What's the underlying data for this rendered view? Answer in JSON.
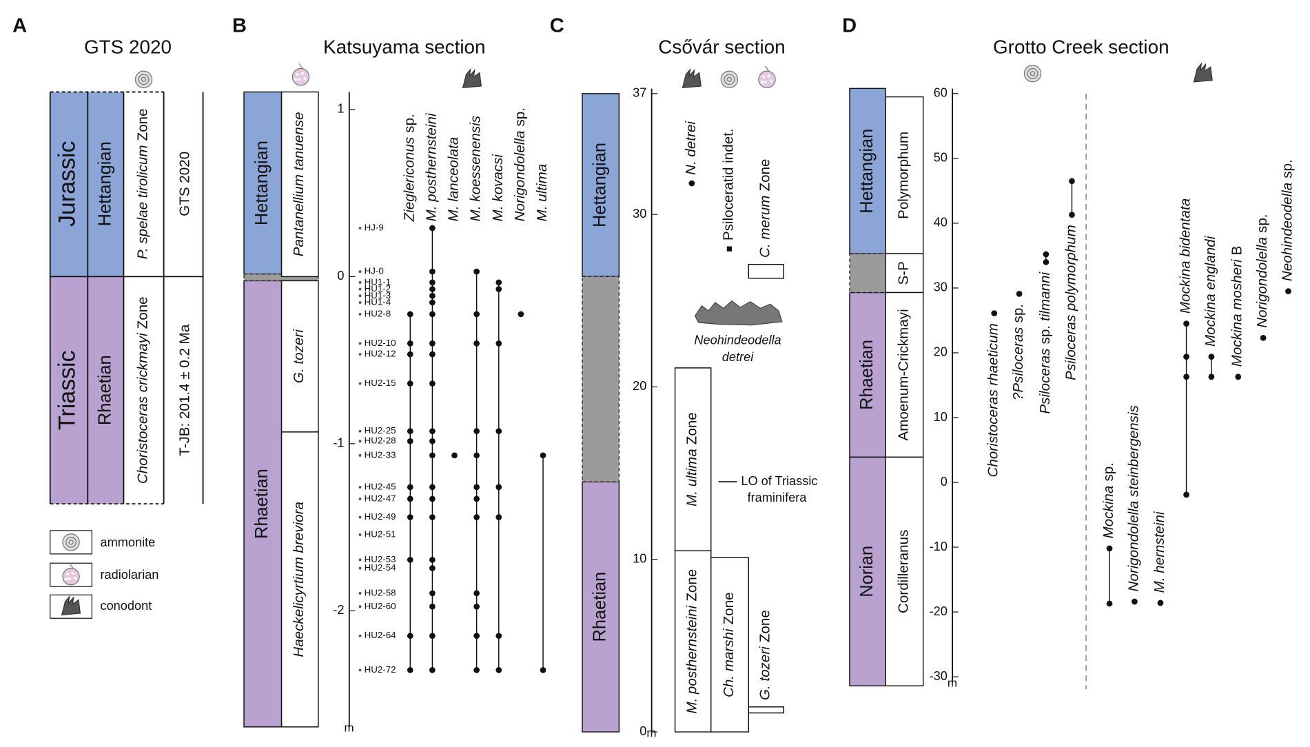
{
  "A": {
    "label": "A",
    "title": "GTS 2020",
    "systems": [
      "Jurassic",
      "Triassic"
    ],
    "stages": [
      "Hettangian",
      "Rhaetian"
    ],
    "zones": [
      {
        "name": [
          "P. spelae tirolicum",
          "Zone"
        ],
        "italic": [
          true,
          false
        ]
      },
      {
        "name": [
          "Choristoceras crickmayi",
          "Zone"
        ],
        "italic": [
          true,
          false
        ]
      }
    ],
    "scale": "GTS 2020",
    "boundary": "T-JB:  201.4 ± 0.2 Ma",
    "legend": [
      "ammonite",
      "radiolarian",
      "conodont"
    ]
  },
  "B": {
    "label": "B",
    "title": "Katsuyama section",
    "ylim": [
      -2.695,
      1.105
    ],
    "yticks": [
      1,
      0,
      -1,
      -2
    ],
    "unit": "m",
    "stages": [
      {
        "name": "Hettangian",
        "range": [
          0.015,
          1.105
        ],
        "color": "#8aa5d6"
      },
      {
        "name": "Rhaetian",
        "range": [
          -2.695,
          -0.025
        ],
        "color": "#b9a2cf"
      }
    ],
    "gray_band": [
      -0.025,
      0.015
    ],
    "zones": [
      {
        "name": [
          "Pantanellium tanuense"
        ],
        "italic": [
          true
        ],
        "range": [
          0,
          1.105
        ]
      },
      {
        "name": [
          "G. tozeri"
        ],
        "italic": [
          true
        ],
        "range": [
          -0.93,
          -0.025
        ]
      },
      {
        "name": [
          "Haeckelicyrtium breviora"
        ],
        "italic": [
          true
        ],
        "range": [
          -2.695,
          -0.93
        ]
      }
    ],
    "samples": [
      {
        "name": "HJ-9",
        "height": 0.29
      },
      {
        "name": "HJ-0",
        "height": 0.03
      },
      {
        "name": "HU1-1",
        "height": -0.035
      },
      {
        "name": "HU1-2",
        "height": -0.075
      },
      {
        "name": "HU1-3",
        "height": -0.115
      },
      {
        "name": "HU1-4",
        "height": -0.155
      },
      {
        "name": "HU2-8",
        "height": -0.225
      },
      {
        "name": "HU2-10",
        "height": -0.4
      },
      {
        "name": "HU2-12",
        "height": -0.465
      },
      {
        "name": "HU2-15",
        "height": -0.64
      },
      {
        "name": "HU2-25",
        "height": -0.925
      },
      {
        "name": "HU2-28",
        "height": -0.985
      },
      {
        "name": "HU2-33",
        "height": -1.07
      },
      {
        "name": "HU2-45",
        "height": -1.26
      },
      {
        "name": "HU2-47",
        "height": -1.33
      },
      {
        "name": "HU2-49",
        "height": -1.44
      },
      {
        "name": "HU2-51",
        "height": -1.545
      },
      {
        "name": "HU2-53",
        "height": -1.695
      },
      {
        "name": "HU2-54",
        "height": -1.745
      },
      {
        "name": "HU2-58",
        "height": -1.895
      },
      {
        "name": "HU2-60",
        "height": -1.975
      },
      {
        "name": "HU2-64",
        "height": -2.15
      },
      {
        "name": "HU2-72",
        "height": -2.355
      }
    ],
    "taxa": [
      {
        "name": [
          "Zieglericonus",
          "sp."
        ],
        "italic": [
          true,
          false
        ],
        "heights": [
          -0.225,
          -0.4,
          -0.465,
          -0.64,
          -0.925,
          -0.985,
          -1.26,
          -1.33,
          -1.44,
          -1.695,
          -2.15,
          -2.355
        ]
      },
      {
        "name": [
          "M. posthernsteini"
        ],
        "italic": [
          true
        ],
        "heights": [
          0.29,
          0.03,
          -0.035,
          -0.075,
          -0.115,
          -0.155,
          -0.225,
          -0.4,
          -0.465,
          -0.64,
          -0.925,
          -0.985,
          -1.07,
          -1.26,
          -1.33,
          -1.44,
          -1.695,
          -1.745,
          -1.895,
          -1.975,
          -2.15,
          -2.355
        ]
      },
      {
        "name": [
          "M. lanceolata"
        ],
        "italic": [
          true
        ],
        "heights": [
          -1.07
        ]
      },
      {
        "name": [
          "M. koessenensis"
        ],
        "italic": [
          true
        ],
        "heights": [
          0.03,
          -0.225,
          -0.4,
          -0.925,
          -1.07,
          -1.26,
          -1.33,
          -1.44,
          -1.895,
          -1.975,
          -2.15,
          -2.355
        ]
      },
      {
        "name": [
          "M. kovacsi"
        ],
        "italic": [
          true
        ],
        "heights": [
          -0.035,
          -0.075,
          -0.4,
          -0.925,
          -1.26,
          -1.44,
          -2.15,
          -2.355
        ]
      },
      {
        "name": [
          "Norigondolella",
          "sp."
        ],
        "italic": [
          true,
          false
        ],
        "heights": [
          -0.225
        ]
      },
      {
        "name": [
          "M. ultima"
        ],
        "italic": [
          true
        ],
        "heights": [
          -1.07,
          -2.355
        ]
      }
    ]
  },
  "C": {
    "label": "C",
    "title": "Csővár section",
    "ylim": [
      0,
      37
    ],
    "yticks": [
      0,
      10,
      20,
      30,
      37
    ],
    "unit": "m",
    "stages": [
      {
        "name": "Hettangian",
        "range": [
          26.4,
          37
        ],
        "color": "#8aa5d6"
      },
      {
        "name": "Rhaetian",
        "range": [
          0,
          14.5
        ],
        "color": "#b9a2cf"
      }
    ],
    "gray_band": [
      14.5,
      26.4
    ],
    "zones": [
      {
        "name": [
          "M. posthernsteini",
          "Zone"
        ],
        "italic": [
          true,
          false
        ],
        "range": [
          0,
          10.5
        ]
      },
      {
        "name": [
          "M. ultima",
          "Zone"
        ],
        "italic": [
          true,
          false
        ],
        "range": [
          10.5,
          21.1
        ]
      },
      {
        "name": [
          "Ch. marshi",
          "Zone"
        ],
        "italic": [
          true,
          false
        ],
        "range": [
          0,
          10.1
        ]
      },
      {
        "name": [
          "G. tozeri",
          "Zone"
        ],
        "italic": [
          true,
          false
        ],
        "range": [
          1.1,
          1.45
        ]
      },
      {
        "name": [
          "C. merum",
          "Zone"
        ],
        "italic": [
          true,
          false
        ],
        "range": [
          26.3,
          27.1
        ]
      }
    ],
    "taxa": [
      {
        "name": [
          "N. detrei"
        ],
        "italic": [
          true
        ],
        "height": 31.8,
        "marker": "circle"
      },
      {
        "name": [
          "Psiloceratid indet."
        ],
        "italic": [
          false
        ],
        "height": 28.0,
        "marker": "square"
      }
    ],
    "annotation": {
      "lines": [
        "LO of Triassic",
        "framinifera"
      ],
      "height": 14.5
    },
    "image_caption": [
      "Neohindeodella",
      "detrei"
    ]
  },
  "D": {
    "label": "D",
    "title": "Grotto Creek section",
    "ylim": [
      -30,
      60
    ],
    "yticks": [
      -30,
      -20,
      -10,
      0,
      10,
      20,
      30,
      40,
      50,
      60
    ],
    "unit": "m",
    "stages": [
      {
        "name": "Hettangian",
        "range": [
          35.3,
          60.8
        ],
        "color": "#8aa5d6"
      },
      {
        "name": "Rhaetian",
        "range": [
          3.9,
          29.3
        ],
        "color": "#b9a2cf"
      },
      {
        "name": "Norian",
        "range": [
          -31.4,
          3.9
        ],
        "color": "#b9a2cf"
      }
    ],
    "gray_band": [
      29.3,
      35.3
    ],
    "zones": [
      {
        "name": [
          "Polymorphum"
        ],
        "italic": [
          false
        ],
        "range": [
          35.3,
          59.5
        ]
      },
      {
        "name": [
          "S-P"
        ],
        "italic": [
          false
        ],
        "range": [
          29.3,
          35.3
        ]
      },
      {
        "name": [
          "Amoenum-Crickmayi"
        ],
        "italic": [
          false
        ],
        "range": [
          3.9,
          29.3
        ]
      },
      {
        "name": [
          "Cordilleranus"
        ],
        "italic": [
          false
        ],
        "range": [
          -31.4,
          3.9
        ]
      }
    ],
    "groups": [
      {
        "label_side": "below",
        "taxa": [
          {
            "name": [
              "Choristoceras rhaeticum"
            ],
            "italic": [
              true
            ],
            "heights": [
              26.1
            ]
          },
          {
            "name": [
              "?Psiloceras",
              "sp."
            ],
            "italic": [
              true,
              false
            ],
            "heights": [
              29.1
            ]
          },
          {
            "name": [
              "Psiloceras",
              "sp.",
              "tilmanni"
            ],
            "italic": [
              true,
              false,
              true
            ],
            "heights": [
              35.2,
              34.0
            ]
          },
          {
            "name": [
              "Psiloceras polymorphum"
            ],
            "italic": [
              true
            ],
            "heights": [
              46.5,
              41.3
            ]
          }
        ]
      },
      {
        "label_side": "above",
        "taxa": [
          {
            "name": [
              "Mockina",
              "sp."
            ],
            "italic": [
              true,
              false
            ],
            "heights": [
              -10.2,
              -18.7
            ]
          },
          {
            "name": [
              "Norigondolella steinbergensis"
            ],
            "italic": [
              true
            ],
            "heights": [
              -18.4
            ]
          },
          {
            "name": [
              "M. hernsteini"
            ],
            "italic": [
              true
            ],
            "heights": [
              -18.6
            ]
          },
          {
            "name": [
              "Mockina bidentata"
            ],
            "italic": [
              true
            ],
            "heights": [
              24.5,
              19.4,
              16.3,
              -1.9
            ]
          },
          {
            "name": [
              "Mockina englandi"
            ],
            "italic": [
              true
            ],
            "heights": [
              19.4,
              16.3
            ]
          },
          {
            "name": [
              "Mockina mosheri",
              "B"
            ],
            "italic": [
              true,
              false
            ],
            "heights": [
              16.3
            ]
          },
          {
            "name": [
              "Norigondolella",
              "sp."
            ],
            "italic": [
              true,
              false
            ],
            "heights": [
              22.3
            ]
          },
          {
            "name": [
              "Neohindeodella",
              "sp."
            ],
            "italic": [
              true,
              false
            ],
            "heights": [
              29.5
            ]
          }
        ]
      }
    ]
  }
}
